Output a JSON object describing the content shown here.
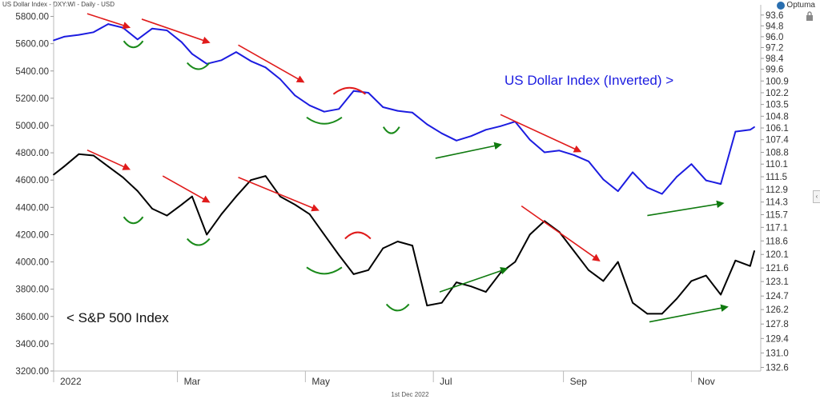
{
  "header": {
    "title": "US Dollar Index - DXY:WI - Daily - USD",
    "brand": "Optuma"
  },
  "footer": {
    "date": "1st Dec 2022"
  },
  "icons": {
    "lock": "lock-icon",
    "expand": "chevron-left-icon",
    "brand": "optuma-logo-icon"
  },
  "chart_data": {
    "type": "line",
    "left_axis": {
      "ylim": [
        3200,
        5850
      ],
      "ticks": [
        "5800.00",
        "5600.00",
        "5400.00",
        "5200.00",
        "5000.00",
        "4800.00",
        "4600.00",
        "4400.00",
        "4200.00",
        "4000.00",
        "3800.00",
        "3600.00",
        "3400.00",
        "3200.00"
      ]
    },
    "right_axis": {
      "inverted": true,
      "ylim": [
        93.0,
        133.0
      ],
      "ticks": [
        "93.6",
        "94.8",
        "96.0",
        "97.2",
        "98.4",
        "99.6",
        "100.9",
        "102.2",
        "103.5",
        "104.8",
        "106.1",
        "107.4",
        "108.8",
        "110.1",
        "111.5",
        "112.9",
        "114.3",
        "115.7",
        "117.1",
        "118.6",
        "120.1",
        "121.6",
        "123.1",
        "124.7",
        "126.2",
        "127.8",
        "129.4",
        "131.0",
        "132.6"
      ]
    },
    "x_labels": [
      "2022",
      "Mar",
      "May",
      "Jul",
      "Sep",
      "Nov"
    ],
    "grid": false,
    "colors": {
      "sp500": "#000000",
      "dxy": "#1c1ce0",
      "down_arrow": "#e01b1b",
      "up_arrow": "#0f7a0f",
      "trough": "#1a8a1a",
      "peak": "#e01b1b"
    },
    "series": [
      {
        "name": "< S&P 500 Index",
        "axis": "left",
        "color": "#000000",
        "x": [
          "2022-01-01",
          "2022-01-06",
          "2022-01-13",
          "2022-01-20",
          "2022-01-27",
          "2022-02-03",
          "2022-02-10",
          "2022-02-17",
          "2022-02-24",
          "2022-03-03",
          "2022-03-08",
          "2022-03-15",
          "2022-03-22",
          "2022-03-29",
          "2022-04-05",
          "2022-04-12",
          "2022-04-19",
          "2022-04-26",
          "2022-05-03",
          "2022-05-10",
          "2022-05-17",
          "2022-05-24",
          "2022-05-31",
          "2022-06-07",
          "2022-06-14",
          "2022-06-21",
          "2022-06-28",
          "2022-07-05",
          "2022-07-12",
          "2022-07-19",
          "2022-07-26",
          "2022-08-02",
          "2022-08-09",
          "2022-08-16",
          "2022-08-23",
          "2022-08-30",
          "2022-09-06",
          "2022-09-13",
          "2022-09-20",
          "2022-09-27",
          "2022-10-04",
          "2022-10-11",
          "2022-10-18",
          "2022-10-25",
          "2022-11-01",
          "2022-11-08",
          "2022-11-15",
          "2022-11-22",
          "2022-11-29",
          "2022-12-01"
        ],
        "values": [
          4640,
          4700,
          4790,
          4780,
          4700,
          4620,
          4520,
          4390,
          4340,
          4420,
          4480,
          4200,
          4350,
          4480,
          4600,
          4630,
          4480,
          4420,
          4350,
          4200,
          4050,
          3910,
          3940,
          4100,
          4150,
          4120,
          3680,
          3700,
          3850,
          3820,
          3780,
          3920,
          4000,
          4200,
          4300,
          4220,
          4080,
          3940,
          3860,
          4000,
          3700,
          3620,
          3620,
          3730,
          3860,
          3900,
          3760,
          4010,
          3970,
          4080
        ]
      },
      {
        "name": "US Dollar Index (Inverted) >",
        "axis": "right",
        "color": "#1c1ce0",
        "x": [
          "2022-01-01",
          "2022-01-06",
          "2022-01-13",
          "2022-01-20",
          "2022-01-27",
          "2022-02-03",
          "2022-02-10",
          "2022-02-17",
          "2022-02-24",
          "2022-03-03",
          "2022-03-08",
          "2022-03-15",
          "2022-03-22",
          "2022-03-29",
          "2022-04-05",
          "2022-04-12",
          "2022-04-19",
          "2022-04-26",
          "2022-05-03",
          "2022-05-10",
          "2022-05-17",
          "2022-05-24",
          "2022-05-31",
          "2022-06-07",
          "2022-06-14",
          "2022-06-21",
          "2022-06-28",
          "2022-07-05",
          "2022-07-12",
          "2022-07-19",
          "2022-07-26",
          "2022-08-02",
          "2022-08-09",
          "2022-08-16",
          "2022-08-23",
          "2022-08-30",
          "2022-09-06",
          "2022-09-13",
          "2022-09-20",
          "2022-09-27",
          "2022-10-04",
          "2022-10-11",
          "2022-10-18",
          "2022-10-25",
          "2022-11-01",
          "2022-11-08",
          "2022-11-15",
          "2022-11-22",
          "2022-11-29",
          "2022-12-01"
        ],
        "values": [
          96.4,
          96.0,
          95.8,
          95.5,
          94.6,
          95.0,
          96.3,
          95.1,
          95.3,
          96.6,
          97.9,
          99.0,
          98.6,
          97.7,
          98.7,
          99.4,
          100.7,
          102.5,
          103.6,
          104.3,
          104.0,
          102.0,
          102.2,
          103.8,
          104.2,
          104.4,
          105.7,
          106.7,
          107.5,
          107.0,
          106.3,
          105.9,
          105.4,
          107.4,
          108.8,
          108.6,
          109.1,
          109.8,
          111.8,
          113.1,
          111.0,
          112.7,
          113.4,
          111.5,
          110.1,
          111.9,
          112.3,
          106.5,
          106.3,
          106.0
        ]
      }
    ],
    "annotations": [
      {
        "kind": "arrow",
        "color": "down_arrow",
        "x": [
          "2022-01-17",
          "2022-02-06"
        ],
        "y": [
          5820,
          5720
        ],
        "axis": "left"
      },
      {
        "kind": "arrow",
        "color": "down_arrow",
        "x": [
          "2022-02-12",
          "2022-03-16"
        ],
        "y": [
          5780,
          5610
        ],
        "axis": "left"
      },
      {
        "kind": "arrow",
        "color": "down_arrow",
        "x": [
          "2022-03-30",
          "2022-04-30"
        ],
        "y": [
          5590,
          5320
        ],
        "axis": "left"
      },
      {
        "kind": "arrow",
        "color": "down_arrow",
        "x": [
          "2022-08-02",
          "2022-09-09"
        ],
        "y": [
          5080,
          4810
        ],
        "axis": "left"
      },
      {
        "kind": "arrow",
        "color": "up_arrow",
        "x": [
          "2022-07-02",
          "2022-08-02"
        ],
        "y": [
          4760,
          4860
        ],
        "axis": "left"
      },
      {
        "kind": "arrow",
        "color": "up_arrow",
        "x": [
          "2022-10-11",
          "2022-11-16"
        ],
        "y": [
          4340,
          4430
        ],
        "axis": "left"
      },
      {
        "kind": "arc",
        "shape": "trough",
        "color": "trough",
        "cx": "2022-02-08",
        "y": 5620,
        "rx": 12,
        "axis": "left"
      },
      {
        "kind": "arc",
        "shape": "trough",
        "color": "trough",
        "cx": "2022-03-11",
        "y": 5460,
        "rx": 14,
        "axis": "left"
      },
      {
        "kind": "arc",
        "shape": "trough",
        "color": "trough",
        "cx": "2022-05-10",
        "y": 5060,
        "rx": 22,
        "axis": "left"
      },
      {
        "kind": "arc",
        "shape": "peak",
        "color": "peak",
        "cx": "2022-05-22",
        "y": 5230,
        "rx": 20,
        "axis": "left"
      },
      {
        "kind": "arc",
        "shape": "trough",
        "color": "trough",
        "cx": "2022-06-11",
        "y": 4990,
        "rx": 10,
        "axis": "left"
      },
      {
        "kind": "arrow",
        "color": "down_arrow",
        "x": [
          "2022-01-17",
          "2022-02-06"
        ],
        "y": [
          4820,
          4680
        ],
        "axis": "left"
      },
      {
        "kind": "arrow",
        "color": "down_arrow",
        "x": [
          "2022-02-22",
          "2022-03-16"
        ],
        "y": [
          4630,
          4440
        ],
        "axis": "left"
      },
      {
        "kind": "arrow",
        "color": "down_arrow",
        "x": [
          "2022-03-30",
          "2022-05-07"
        ],
        "y": [
          4620,
          4380
        ],
        "axis": "left"
      },
      {
        "kind": "arrow",
        "color": "down_arrow",
        "x": [
          "2022-08-12",
          "2022-09-18"
        ],
        "y": [
          4410,
          4010
        ],
        "axis": "left"
      },
      {
        "kind": "arrow",
        "color": "up_arrow",
        "x": [
          "2022-07-04",
          "2022-08-05"
        ],
        "y": [
          3780,
          3950
        ],
        "axis": "left"
      },
      {
        "kind": "arrow",
        "color": "up_arrow",
        "x": [
          "2022-10-12",
          "2022-11-18"
        ],
        "y": [
          3560,
          3670
        ],
        "axis": "left"
      },
      {
        "kind": "arc",
        "shape": "trough",
        "color": "trough",
        "cx": "2022-02-08",
        "y": 4330,
        "rx": 12,
        "axis": "left"
      },
      {
        "kind": "arc",
        "shape": "trough",
        "color": "trough",
        "cx": "2022-03-11",
        "y": 4170,
        "rx": 14,
        "axis": "left"
      },
      {
        "kind": "arc",
        "shape": "trough",
        "color": "trough",
        "cx": "2022-05-10",
        "y": 3960,
        "rx": 22,
        "axis": "left"
      },
      {
        "kind": "arc",
        "shape": "peak",
        "color": "peak",
        "cx": "2022-05-26",
        "y": 4170,
        "rx": 16,
        "axis": "left"
      },
      {
        "kind": "arc",
        "shape": "trough",
        "color": "trough",
        "cx": "2022-06-14",
        "y": 3690,
        "rx": 14,
        "axis": "left"
      }
    ]
  }
}
